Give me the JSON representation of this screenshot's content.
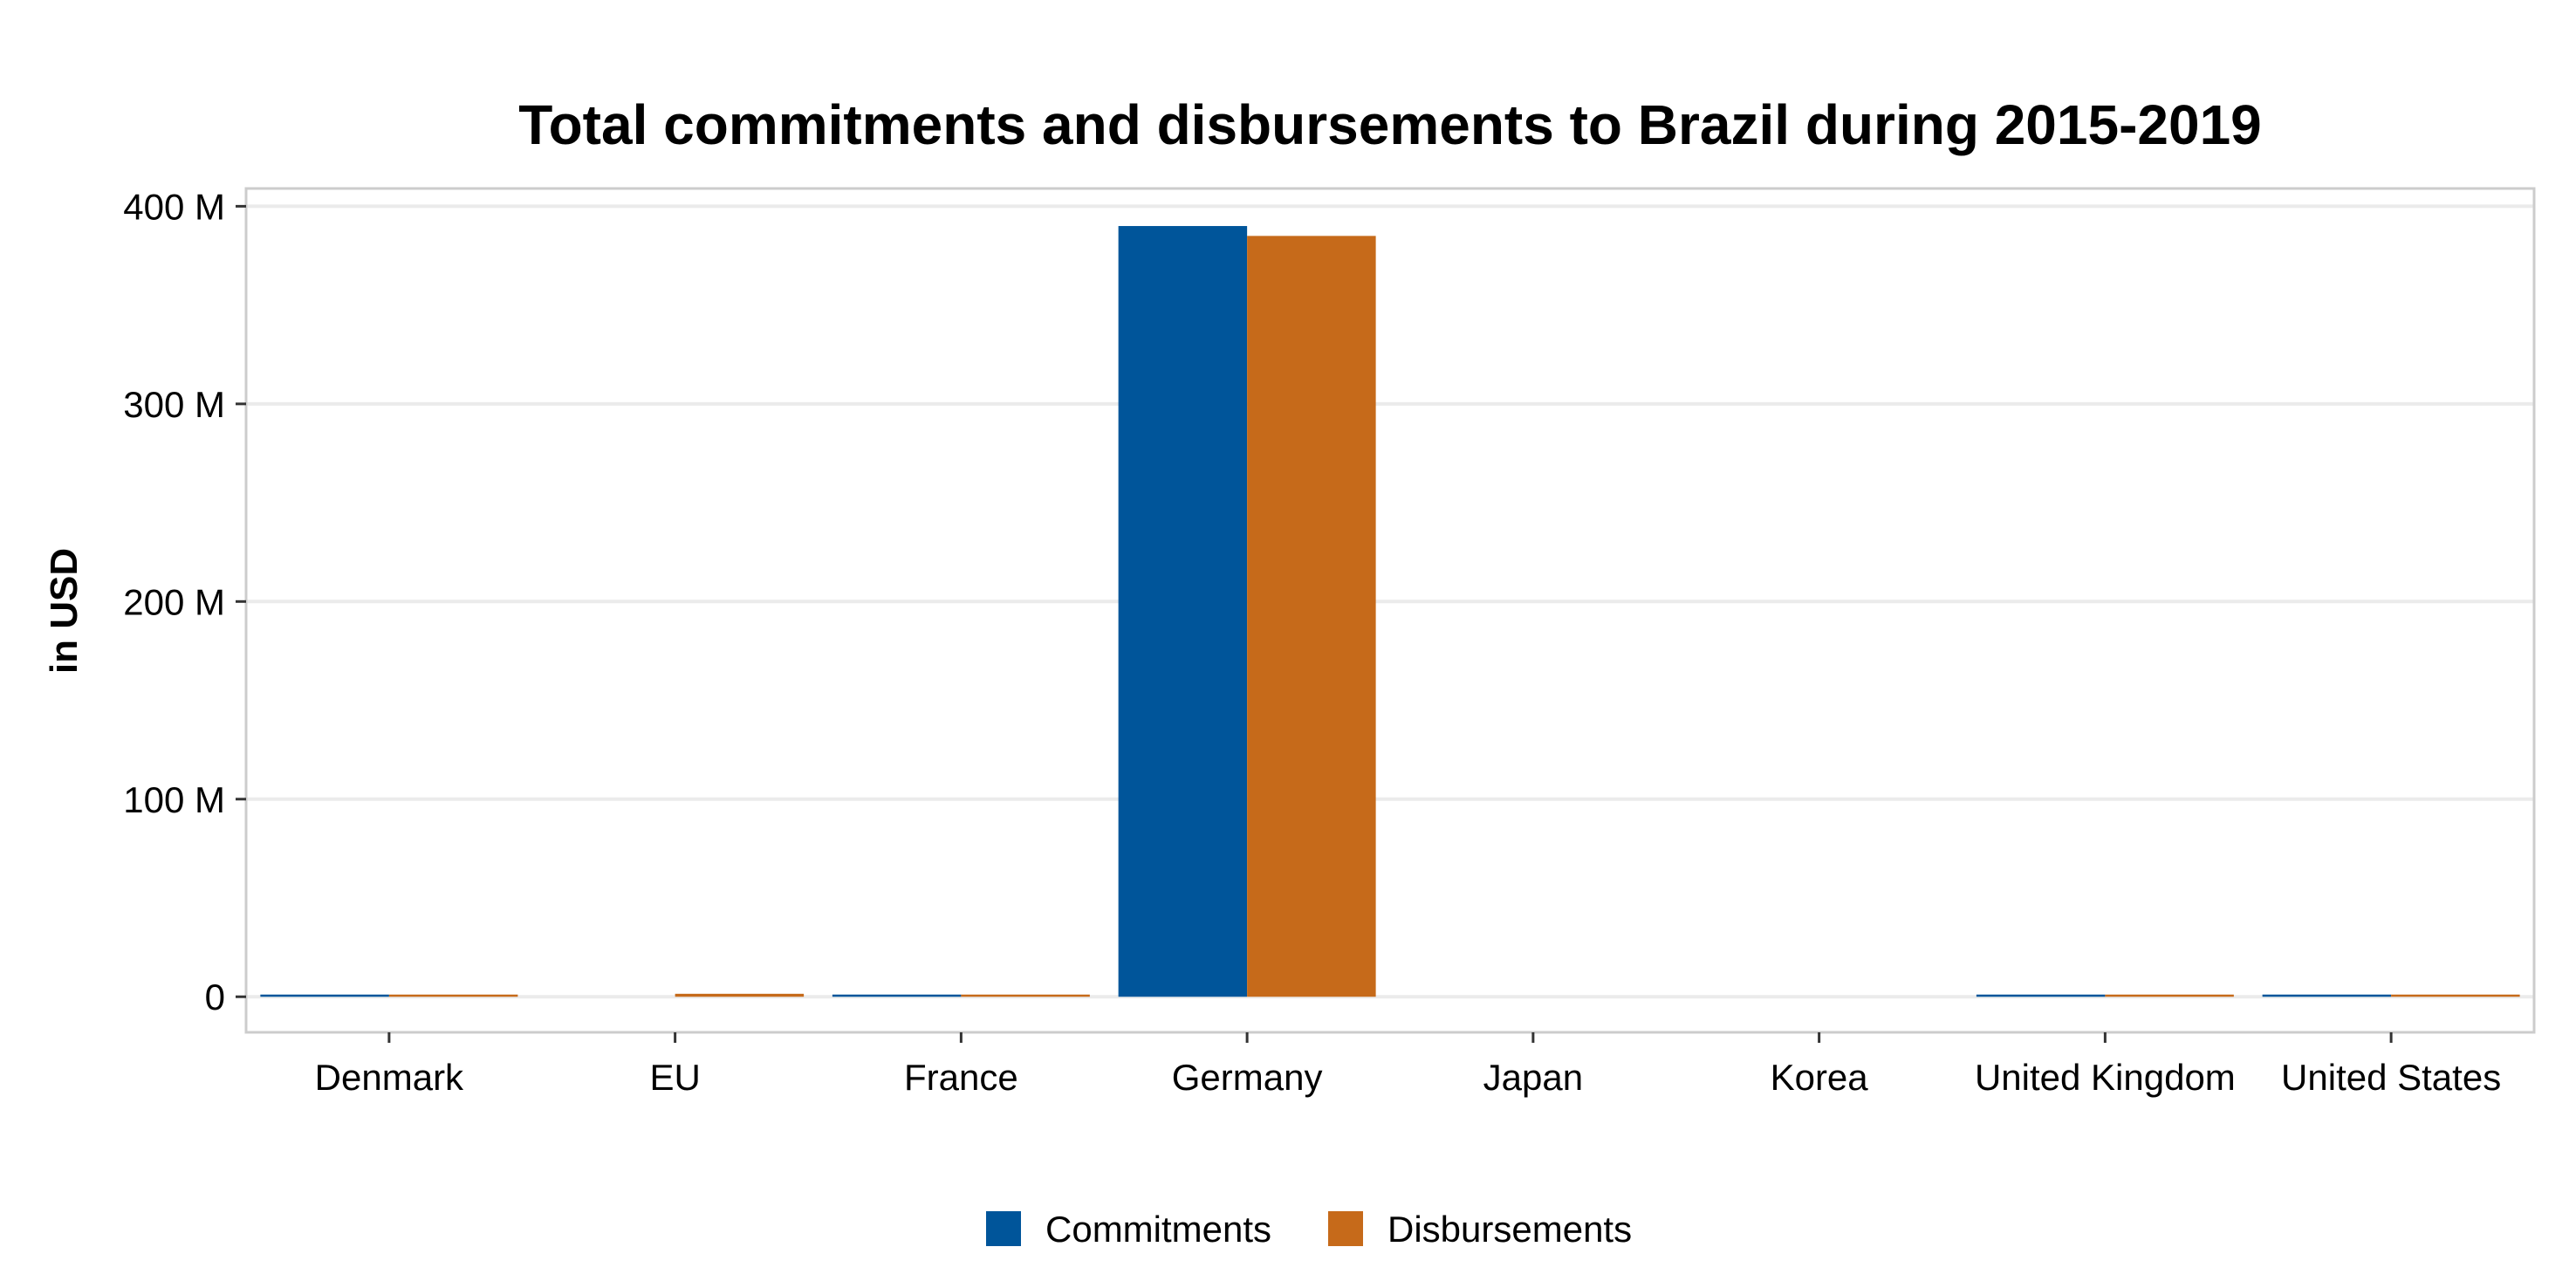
{
  "chart_data": {
    "type": "bar",
    "title": "Total commitments and disbursements to Brazil during 2015-2019",
    "xlabel": "",
    "ylabel": "in USD",
    "categories": [
      "Denmark",
      "EU",
      "France",
      "Germany",
      "Japan",
      "Korea",
      "United Kingdom",
      "United States"
    ],
    "series": [
      {
        "name": "Commitments",
        "color": "#00559A",
        "values": [
          0.3,
          0,
          0.8,
          390,
          0,
          0,
          0.8,
          0.4
        ]
      },
      {
        "name": "Disbursements",
        "color": "#C66A1A",
        "values": [
          0.3,
          1.5,
          0.3,
          385,
          0,
          0,
          0.8,
          0.8
        ]
      }
    ],
    "ylim": [
      -18,
      409
    ],
    "yticks": [
      0,
      100,
      200,
      300,
      400
    ],
    "ytick_labels": [
      "0",
      "100 M",
      "200 M",
      "300 M",
      "400 M"
    ],
    "grid": true,
    "legend_position": "bottom",
    "value_units": "M USD"
  }
}
